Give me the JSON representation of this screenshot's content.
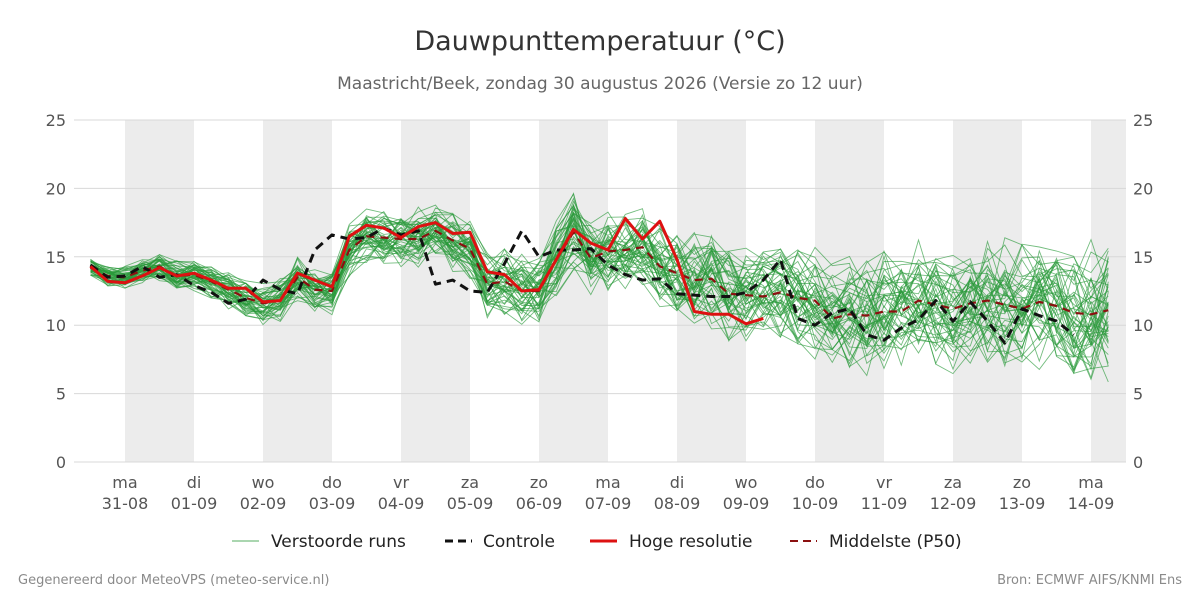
{
  "chart_data": {
    "type": "line",
    "title": "Dauwpunttemperatuur (°C)",
    "subtitle": "Maastricht/Beek, zondag 30 augustus 2026 (Versie zo 12 uur)",
    "ylim": [
      0,
      25
    ],
    "yticks": [
      0,
      5,
      10,
      15,
      20,
      25
    ],
    "grid": true,
    "legend_position": "bottom",
    "x_start": "30-08 12:00",
    "x_step_hours": 6,
    "x_ticks": [
      {
        "day": "ma",
        "date": "31-08"
      },
      {
        "day": "di",
        "date": "01-09"
      },
      {
        "day": "wo",
        "date": "02-09"
      },
      {
        "day": "do",
        "date": "03-09"
      },
      {
        "day": "vr",
        "date": "04-09"
      },
      {
        "day": "za",
        "date": "05-09"
      },
      {
        "day": "zo",
        "date": "06-09"
      },
      {
        "day": "ma",
        "date": "07-09"
      },
      {
        "day": "di",
        "date": "08-09"
      },
      {
        "day": "wo",
        "date": "09-09"
      },
      {
        "day": "do",
        "date": "10-09"
      },
      {
        "day": "vr",
        "date": "11-09"
      },
      {
        "day": "za",
        "date": "12-09"
      },
      {
        "day": "zo",
        "date": "13-09"
      },
      {
        "day": "ma",
        "date": "14-09"
      }
    ],
    "series": [
      {
        "name": "Controle",
        "color": "#111111",
        "style": "dashed",
        "values": [
          14.4,
          13.5,
          13.6,
          14.3,
          13.5,
          13.7,
          12.9,
          12.4,
          11.6,
          11.9,
          13.3,
          12.6,
          12.3,
          15.5,
          16.6,
          16.3,
          16.4,
          17.1,
          16.6,
          16.9,
          13.0,
          13.3,
          12.5,
          12.4,
          14.5,
          16.9,
          15.0,
          15.5,
          15.5,
          15.6,
          14.4,
          13.7,
          13.3,
          13.4,
          12.3,
          12.2,
          12.1,
          12.1,
          12.4,
          13.3,
          14.8,
          10.5,
          10.0,
          10.9,
          11.2,
          9.3,
          8.9,
          9.8,
          10.4,
          11.8,
          10.3,
          11.7,
          10.3,
          8.7,
          11.2,
          10.7,
          10.3,
          9.3
        ]
      },
      {
        "name": "Hoge resolutie",
        "color": "#dd1111",
        "style": "solid",
        "values": [
          14.3,
          13.2,
          13.1,
          13.6,
          14.2,
          13.6,
          13.8,
          13.3,
          12.7,
          12.7,
          11.7,
          11.8,
          13.8,
          13.3,
          12.8,
          16.5,
          17.3,
          17.1,
          16.4,
          17.2,
          17.5,
          16.7,
          16.8,
          13.9,
          13.7,
          12.5,
          12.6,
          14.8,
          17.0,
          16.0,
          15.5,
          17.8,
          16.3,
          17.6,
          14.8,
          11.0,
          10.8,
          10.8,
          10.1,
          10.5
        ]
      },
      {
        "name": "Middelste (P50)",
        "color": "#8b1010",
        "style": "dashed",
        "values": [
          14.2,
          13.6,
          13.5,
          14.0,
          14.3,
          13.6,
          13.7,
          13.2,
          12.6,
          12.0,
          11.6,
          11.8,
          13.5,
          12.6,
          12.5,
          15.5,
          16.5,
          16.4,
          16.3,
          16.3,
          16.9,
          16.2,
          15.6,
          13.0,
          13.2,
          12.5,
          12.5,
          14.8,
          16.8,
          14.9,
          15.4,
          15.5,
          15.7,
          14.3,
          13.8,
          13.3,
          13.4,
          12.3,
          12.2,
          12.1,
          12.4,
          12.0,
          11.8,
          10.5,
          10.8,
          10.7,
          11.0,
          11.0,
          11.8,
          11.5,
          11.2,
          11.6,
          11.8,
          11.5,
          11.2,
          11.7,
          11.4,
          10.9,
          10.8,
          11.1
        ]
      },
      {
        "name": "Verstoorde runs",
        "color": "#2a9a3a",
        "style": "thin",
        "count": 50,
        "band": {
          "mid": [
            14.2,
            13.6,
            13.5,
            14.0,
            14.3,
            13.6,
            13.7,
            13.2,
            12.6,
            12.0,
            11.6,
            11.8,
            13.5,
            12.6,
            12.5,
            15.5,
            16.5,
            16.4,
            16.3,
            16.3,
            16.9,
            16.2,
            15.6,
            13.0,
            13.2,
            12.5,
            12.5,
            14.8,
            16.8,
            14.9,
            15.4,
            15.5,
            15.7,
            14.3,
            13.8,
            13.3,
            13.4,
            12.3,
            12.2,
            12.1,
            12.4,
            12.0,
            11.8,
            10.5,
            10.8,
            10.7,
            11.0,
            11.0,
            11.8,
            11.5,
            11.2,
            11.6,
            11.8,
            11.5,
            11.2,
            11.7,
            11.4,
            10.9,
            10.8,
            11.1
          ],
          "spread_start": 0.6,
          "spread_end": 4.6
        }
      }
    ]
  },
  "legend": [
    {
      "label": "Verstoorde runs",
      "icon": "thin-green-line"
    },
    {
      "label": "Controle",
      "icon": "black-dashed-line"
    },
    {
      "label": "Hoge resolutie",
      "icon": "red-solid-line"
    },
    {
      "label": "Middelste (P50)",
      "icon": "darkred-dashed-line"
    }
  ],
  "footer": {
    "left": "Gegenereerd door MeteoVPS (meteo-service.nl)",
    "right": "Bron: ECMWF AIFS/KNMI Ens"
  }
}
